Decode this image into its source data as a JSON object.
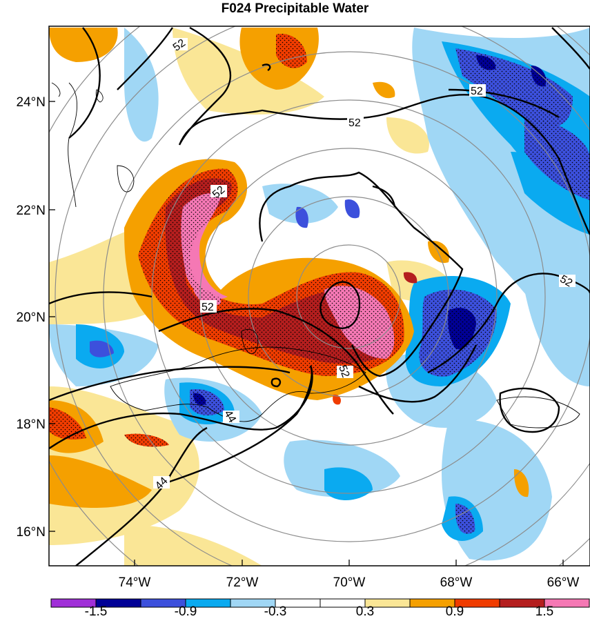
{
  "title": "F024 Precipitable Water",
  "map": {
    "lon_ticks": [
      "74°W",
      "72°W",
      "70°W",
      "68°W",
      "66°W"
    ],
    "lat_ticks": [
      "24°N",
      "22°N",
      "20°N",
      "18°N",
      "16°N"
    ],
    "lon_range": [
      -75.6,
      -65.3
    ],
    "lat_range": [
      15.3,
      25.3
    ],
    "contour_labels": [
      "52",
      "52",
      "52",
      "52",
      "52",
      "52",
      "52",
      "44",
      "44"
    ],
    "range_rings": "concentric gray circles centered near 70.1°W, 20.3°N"
  },
  "colorbar": {
    "labels": [
      "-1.5",
      "-0.9",
      "-0.3",
      "0.3",
      "0.9",
      "1.5"
    ],
    "colors": [
      "#a02fd8",
      "#000096",
      "#3c50dc",
      "#0aaaf0",
      "#a0d7f5",
      "#ffffff",
      "#ffffff",
      "#fae696",
      "#f5a000",
      "#f03c00",
      "#b41e1e",
      "#f578b4"
    ]
  }
}
